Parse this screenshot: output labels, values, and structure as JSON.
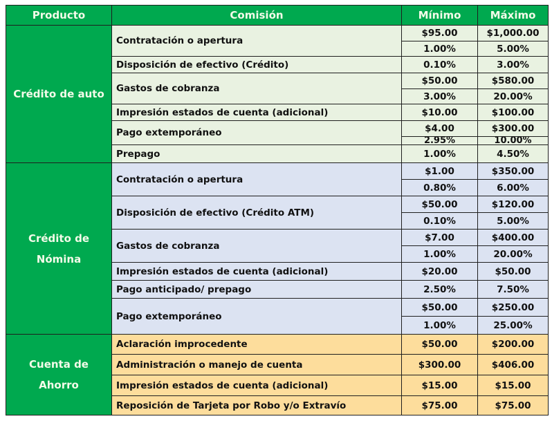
{
  "header": {
    "producto": "Producto",
    "comision": "Comisión",
    "minimo": "Mínimo",
    "maximo": "Máximo"
  },
  "colors": {
    "header_bg": "#00a94f",
    "header_text": "#f3fbe9",
    "auto_bg": "#e9f2e1",
    "nomina_bg": "#dce3f2",
    "ahorro_bg": "#fddd9c"
  },
  "groups": [
    {
      "product": "Crédito de auto",
      "rows": [
        {
          "comision": "Contratación o apertura",
          "values": [
            {
              "min": "$95.00",
              "max": "$1,000.00"
            },
            {
              "min": "1.00%",
              "max": "5.00%"
            }
          ]
        },
        {
          "comision": "Disposición de efectivo (Crédito)",
          "values": [
            {
              "min": "0.10%",
              "max": "3.00%"
            }
          ]
        },
        {
          "comision": "Gastos de cobranza",
          "values": [
            {
              "min": "$50.00",
              "max": "$580.00"
            },
            {
              "min": "3.00%",
              "max": "20.00%"
            }
          ]
        },
        {
          "comision": "Impresión estados de cuenta (adicional)",
          "values": [
            {
              "min": "$10.00",
              "max": "$100.00"
            }
          ]
        },
        {
          "comision": "Pago extemporáneo",
          "values": [
            {
              "min": "$4.00",
              "max": "$300.00"
            },
            {
              "min": "2.95%",
              "max": "10.00%"
            }
          ]
        },
        {
          "comision": "Prepago",
          "values": [
            {
              "min": "1.00%",
              "max": "4.50%"
            }
          ]
        }
      ]
    },
    {
      "product": "Crédito de Nómina",
      "rows": [
        {
          "comision": "Contratación o apertura",
          "values": [
            {
              "min": "$1.00",
              "max": "$350.00"
            },
            {
              "min": "0.80%",
              "max": "6.00%"
            }
          ]
        },
        {
          "comision": "Disposición de efectivo (Crédito ATM)",
          "values": [
            {
              "min": "$50.00",
              "max": "$120.00"
            },
            {
              "min": "0.10%",
              "max": "5.00%"
            }
          ]
        },
        {
          "comision": "Gastos de cobranza",
          "values": [
            {
              "min": "$7.00",
              "max": "$400.00"
            },
            {
              "min": "1.00%",
              "max": "20.00%"
            }
          ]
        },
        {
          "comision": "Impresión estados de cuenta (adicional)",
          "values": [
            {
              "min": "$20.00",
              "max": "$50.00"
            }
          ]
        },
        {
          "comision": "Pago anticipado/ prepago",
          "values": [
            {
              "min": "2.50%",
              "max": "7.50%"
            }
          ]
        },
        {
          "comision": "Pago extemporáneo",
          "values": [
            {
              "min": "$50.00",
              "max": "$250.00"
            },
            {
              "min": "1.00%",
              "max": "25.00%"
            }
          ]
        }
      ]
    },
    {
      "product": "Cuenta de Ahorro",
      "rows": [
        {
          "comision": "Aclaración improcedente",
          "values": [
            {
              "min": "$50.00",
              "max": "$200.00"
            }
          ]
        },
        {
          "comision": "Administración o manejo de cuenta",
          "values": [
            {
              "min": "$300.00",
              "max": "$406.00"
            }
          ]
        },
        {
          "comision": "Impresión estados de cuenta  (adicional)",
          "values": [
            {
              "min": "$15.00",
              "max": "$15.00"
            }
          ]
        },
        {
          "comision": "Reposición de Tarjeta por Robo y/o Extravío",
          "values": [
            {
              "min": "$75.00",
              "max": "$75.00"
            }
          ]
        }
      ]
    }
  ]
}
